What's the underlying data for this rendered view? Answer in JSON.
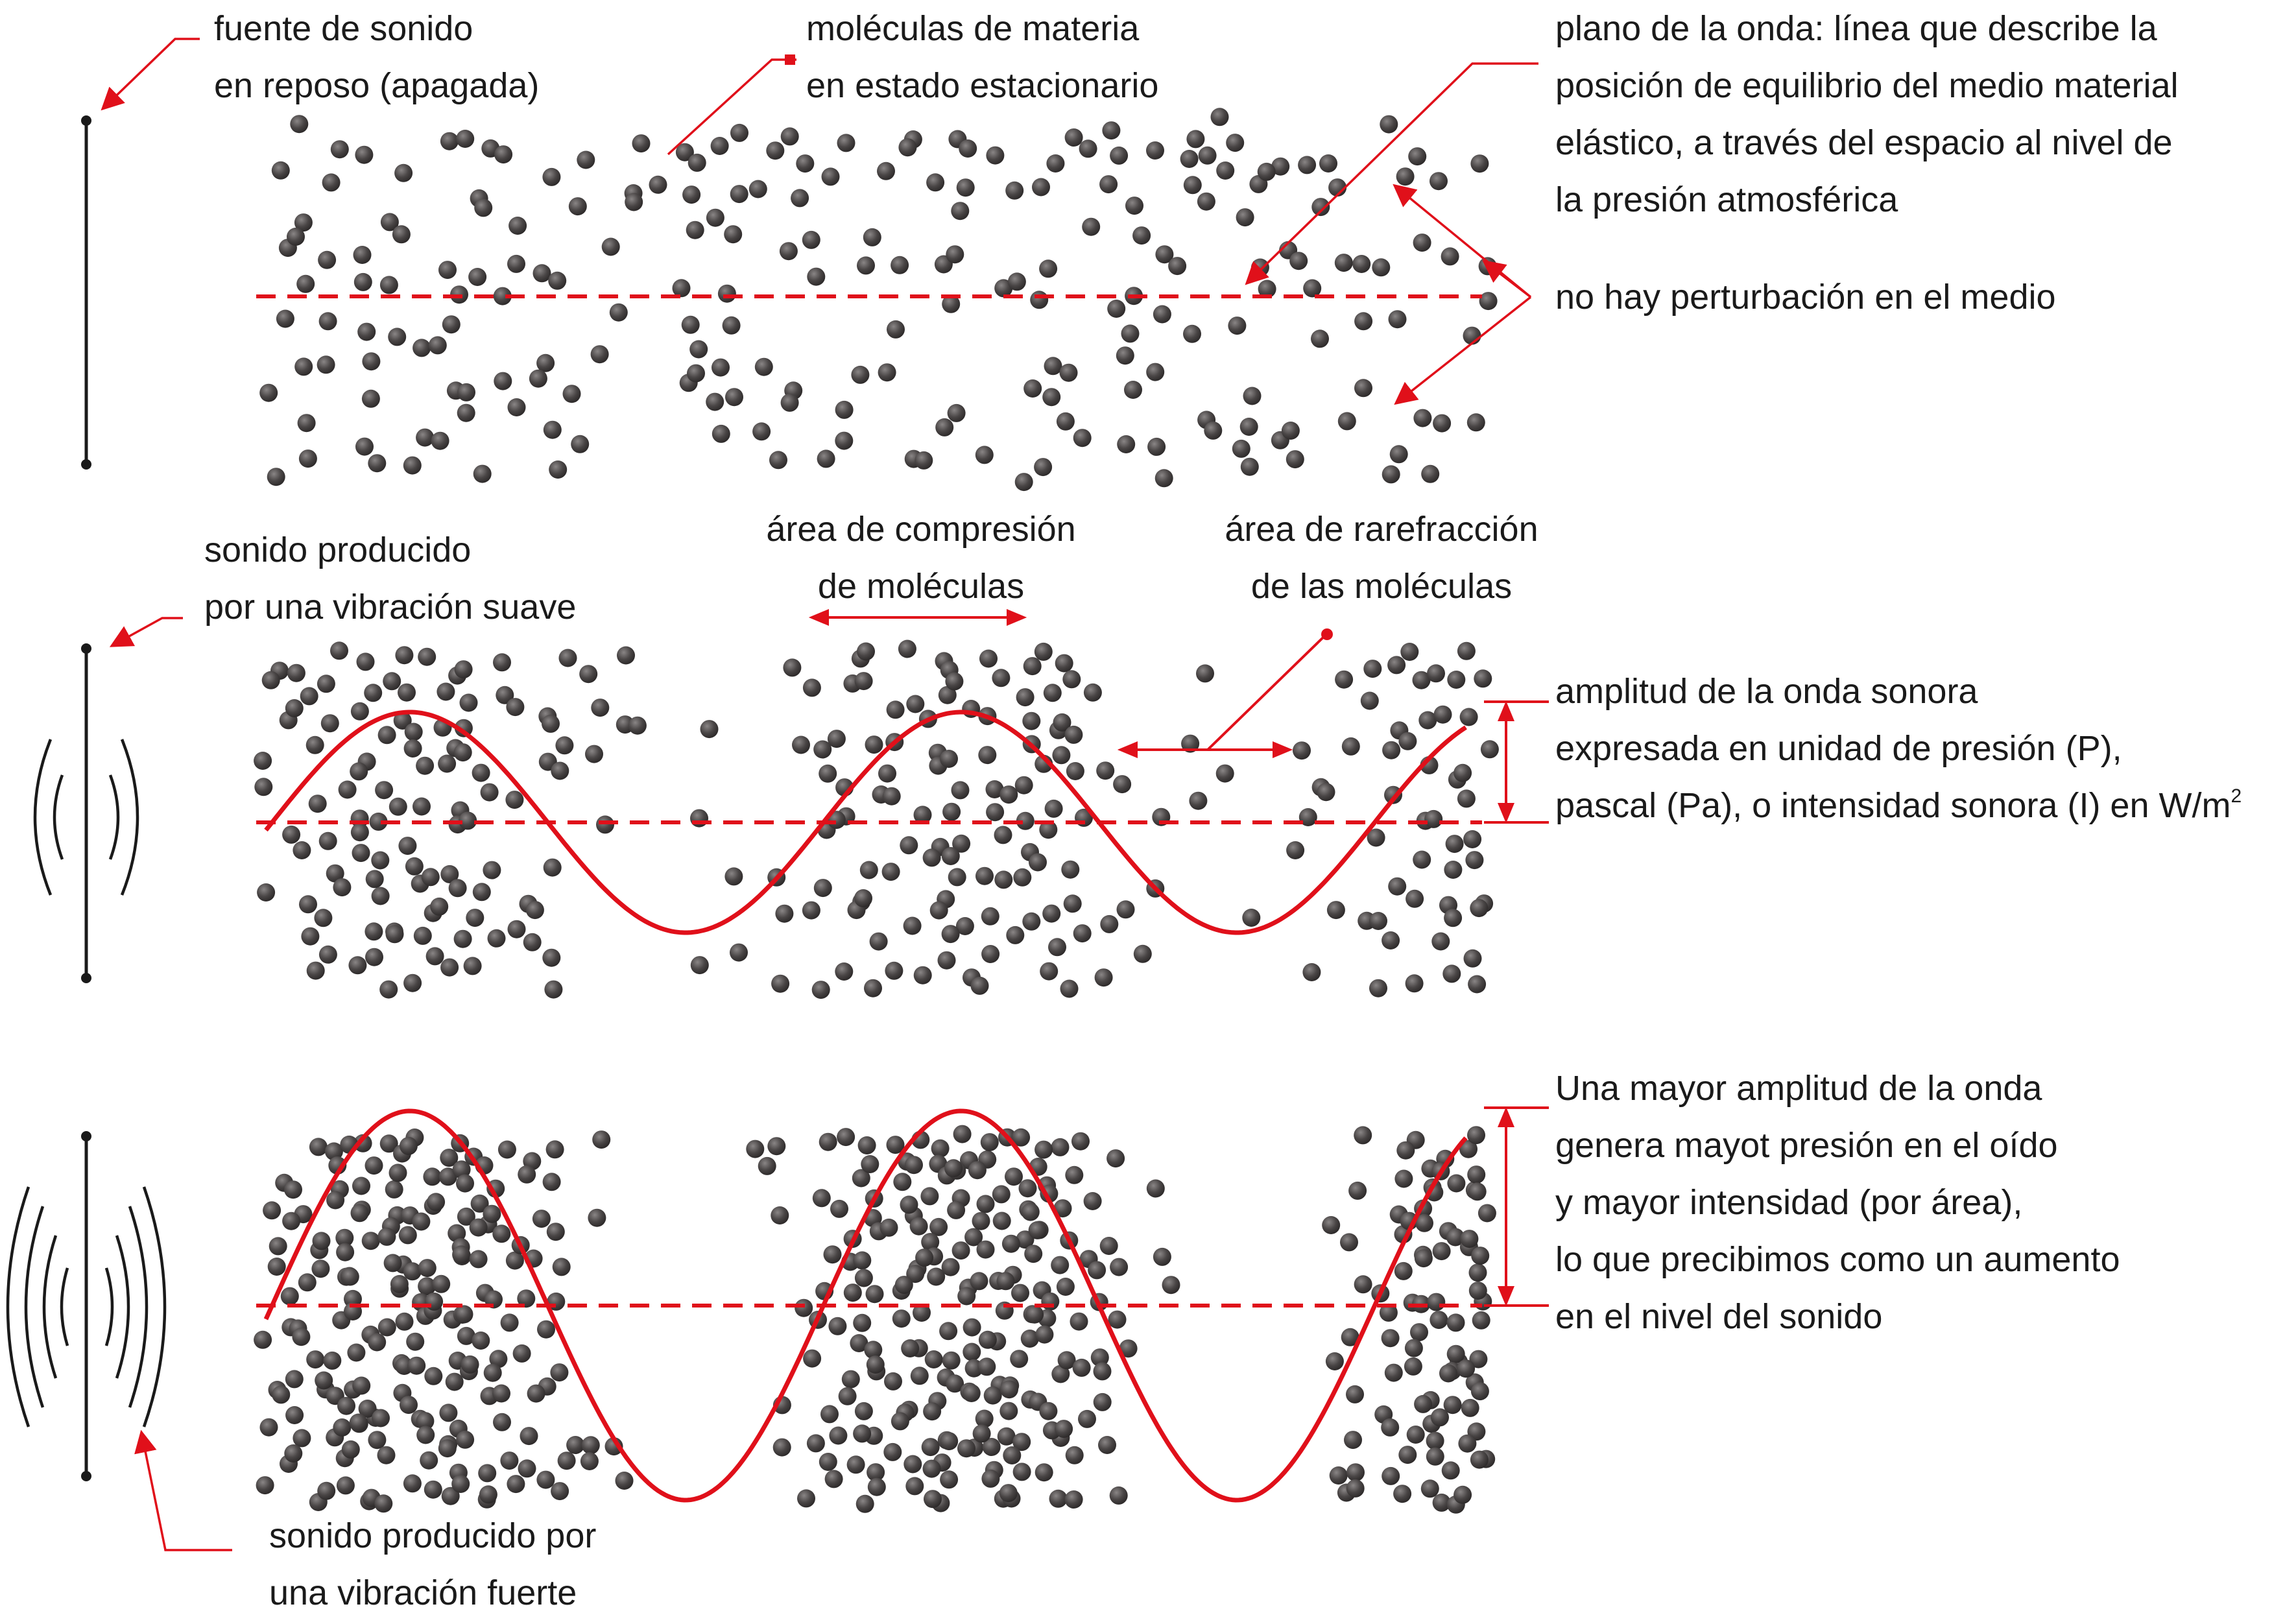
{
  "colors": {
    "accent": "#e0101a",
    "molecule": "#3d3b3b",
    "ink": "#1a1a1a"
  },
  "labels": {
    "source_off": [
      "fuente de sonido",
      "en reposo (apagada)"
    ],
    "molecules_static": [
      "moléculas de materia",
      "en estado estacionario"
    ],
    "wave_plane": [
      "plano de la onda: línea que describe la",
      "posición de equilibrio del medio material",
      "elástico, a través del espacio al nivel de",
      "la presión atmosférica"
    ],
    "no_disturbance": "no hay perturbación en el medio",
    "soft_source": [
      "sonido producido",
      "por una vibración suave"
    ],
    "compression": [
      "área de compresión",
      "de moléculas"
    ],
    "rarefaction": [
      "área de rarefracción",
      "de las moléculas"
    ],
    "amplitude": [
      "amplitud de la onda sonora",
      "expresada en unidad de presión (P),",
      "pascal (Pa), o intensidad sonora (I) en W/m"
    ],
    "amplitude_superscript": "2",
    "greater_amplitude": [
      "Una mayor amplitud de la onda",
      "genera mayot presión en el oído",
      "y mayor intensidad (por área),",
      "lo que precibimos como un aumento",
      "en el nivel del sonido"
    ],
    "strong_source": [
      "sonido producido por",
      "una vibración fuerte"
    ]
  }
}
